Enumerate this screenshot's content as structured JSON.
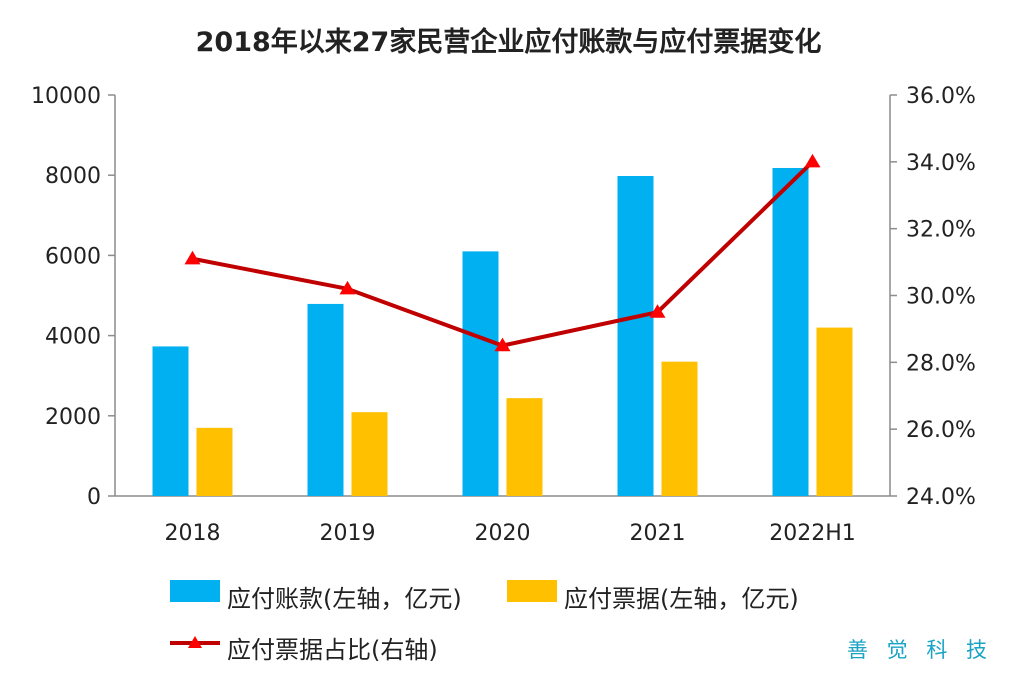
{
  "chart_data": {
    "type": "bar",
    "title": "2018年以来27家民营企业应付账款与应付票据变化",
    "categories": [
      "2018",
      "2019",
      "2020",
      "2021",
      "2022H1"
    ],
    "series": [
      {
        "name": "应付账款(左轴，亿元)",
        "type": "bar",
        "axis": "left",
        "color": "#00b0f0",
        "values": [
          3730,
          4790,
          6100,
          7980,
          8180
        ]
      },
      {
        "name": "应付票据(左轴，亿元)",
        "type": "bar",
        "axis": "left",
        "color": "#ffc000",
        "values": [
          1700,
          2090,
          2440,
          3350,
          4200
        ]
      },
      {
        "name": "应付票据占比(右轴)",
        "type": "line",
        "axis": "right",
        "color": "#c00000",
        "values": [
          31.1,
          30.2,
          28.5,
          29.5,
          34.0
        ]
      }
    ],
    "y_left": {
      "min": 0,
      "max": 10000,
      "ticks": [
        "0",
        "2000",
        "4000",
        "6000",
        "8000",
        "10000"
      ]
    },
    "y_right": {
      "min": 24,
      "max": 36,
      "ticks": [
        "24.0%",
        "26.0%",
        "28.0%",
        "30.0%",
        "32.0%",
        "34.0%",
        "36.0%"
      ]
    },
    "legend_position": "bottom",
    "grid": false,
    "source_mark": "善 觉 科 技"
  }
}
